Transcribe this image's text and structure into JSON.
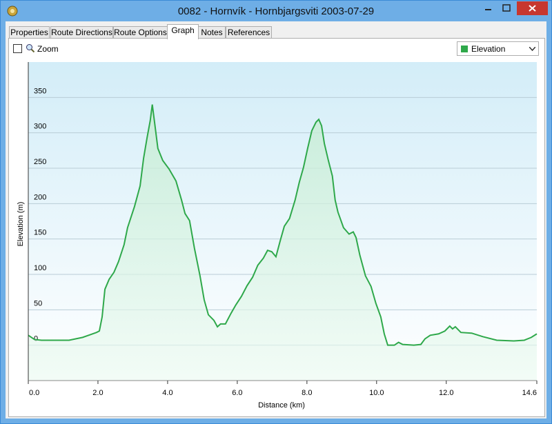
{
  "window": {
    "title": "0082 - Hornvík - Hornbjargsviti 2003-07-29"
  },
  "tabs": [
    "Properties",
    "Route Directions",
    "Route Options",
    "Graph",
    "Notes",
    "References"
  ],
  "toolbar": {
    "zoom_label": "Zoom"
  },
  "chart_data": {
    "type": "line",
    "xlabel": "Distance  (km)",
    "ylabel": "Elevation (m)",
    "x": [
      0,
      0.18,
      0.38,
      1.17,
      1.56,
      1.96,
      2.04,
      2.12,
      2.2,
      2.32,
      2.46,
      2.59,
      2.75,
      2.85,
      3.05,
      3.21,
      3.31,
      3.41,
      3.5,
      3.56,
      3.62,
      3.72,
      3.86,
      4.04,
      4.24,
      4.4,
      4.5,
      4.63,
      4.77,
      4.93,
      5.05,
      5.17,
      5.33,
      5.43,
      5.52,
      5.66,
      5.82,
      5.96,
      6.12,
      6.28,
      6.44,
      6.59,
      6.75,
      6.87,
      6.99,
      7.11,
      7.23,
      7.35,
      7.5,
      7.66,
      7.78,
      7.9,
      8.02,
      8.14,
      8.26,
      8.34,
      8.42,
      8.5,
      8.61,
      8.73,
      8.81,
      8.89,
      9.05,
      9.21,
      9.33,
      9.41,
      9.52,
      9.68,
      9.84,
      9.98,
      10.12,
      10.22,
      10.32,
      10.51,
      10.63,
      10.75,
      11.07,
      11.27,
      11.39,
      11.54,
      11.78,
      11.96,
      12.1,
      12.18,
      12.26,
      12.42,
      12.73,
      13.05,
      13.45,
      13.94,
      14.24,
      14.44,
      14.6
    ],
    "series": [
      {
        "name": "Elevation",
        "color": "#2ea84a",
        "values": [
          14,
          8,
          7,
          7,
          11,
          18,
          20,
          40,
          79,
          93,
          103,
          118,
          142,
          166,
          196,
          225,
          264,
          293,
          317,
          340,
          317,
          278,
          261,
          249,
          232,
          205,
          186,
          176,
          137,
          98,
          64,
          43,
          35,
          26,
          30,
          30,
          45,
          57,
          69,
          84,
          96,
          113,
          123,
          134,
          132,
          125,
          147,
          168,
          179,
          205,
          230,
          251,
          278,
          303,
          315,
          319,
          310,
          285,
          262,
          239,
          205,
          188,
          166,
          157,
          160,
          152,
          127,
          98,
          83,
          59,
          40,
          16,
          0,
          0,
          4,
          1,
          0,
          1,
          9,
          14,
          16,
          20,
          27,
          23,
          26,
          18,
          17,
          12,
          7,
          6,
          7,
          11,
          16
        ]
      }
    ],
    "xlim": [
      0,
      14.6
    ],
    "xticks": [
      {
        "value": 0,
        "label": "0.0"
      },
      {
        "value": 2,
        "label": "2.0"
      },
      {
        "value": 4,
        "label": "4.0"
      },
      {
        "value": 6,
        "label": "6.0"
      },
      {
        "value": 8,
        "label": "8.0"
      },
      {
        "value": 10,
        "label": "10.0"
      },
      {
        "value": 12,
        "label": "12.0"
      },
      14.6
    ],
    "ylim": [
      -50,
      400
    ],
    "yticks": [
      0,
      50,
      100,
      150,
      200,
      250,
      300,
      350
    ],
    "grid": true
  }
}
